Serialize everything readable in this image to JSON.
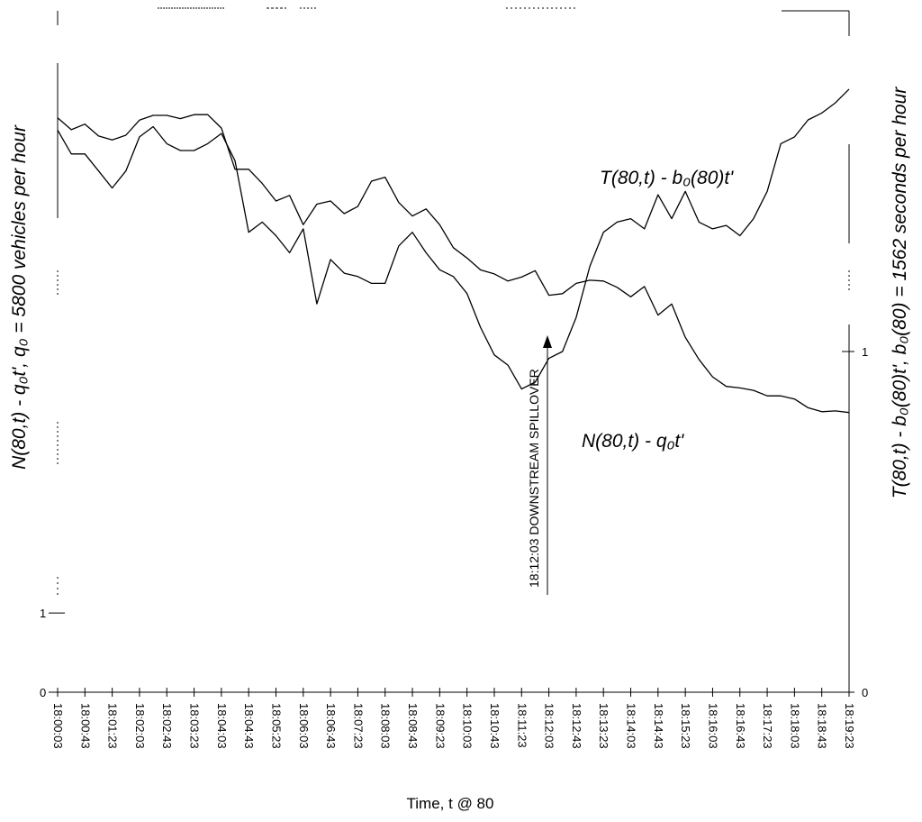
{
  "chart_data": {
    "type": "line",
    "xlabel": "Time, t @ 80",
    "ylabel_left": "N(80,t) - q₀t', q₀ = 5800 vehicles per hour",
    "ylabel_right": "T(80,t) - b₀(80)t', b₀(80) = 1562 seconds per hour",
    "x_tick_labels": [
      "18:00:03",
      "18:00:43",
      "18:01:23",
      "18:02:03",
      "18:02:43",
      "18:03:23",
      "18:04:03",
      "18:04:43",
      "18:05:23",
      "18:06:03",
      "18:06:43",
      "18:07:23",
      "18:08:03",
      "18:08:43",
      "18:09:23",
      "18:10:03",
      "18:10:43",
      "18:11:23",
      "18:12:03",
      "18:12:43",
      "18:13:23",
      "18:14:03",
      "18:14:43",
      "18:15:23",
      "18:16:03",
      "18:16:43",
      "18:17:23",
      "18:18:03",
      "18:18:43",
      "18:19:23"
    ],
    "x_range": [
      0,
      1160
    ],
    "y_left_ticks": [
      {
        "value": 0,
        "label": "0"
      },
      {
        "value": 1,
        "label": "1"
      }
    ],
    "y_left_range": [
      0,
      8.6
    ],
    "y_right_ticks": [
      {
        "value": 0,
        "label": "0"
      },
      {
        "value": 1,
        "label": "1"
      }
    ],
    "y_right_range": [
      0,
      2.0
    ],
    "series": [
      {
        "name": "N(80,t) - q₀t'",
        "axis": "left",
        "x": [
          0,
          20,
          40,
          60,
          80,
          100,
          120,
          140,
          160,
          180,
          200,
          220,
          240,
          260,
          280,
          300,
          320,
          340,
          360,
          380,
          400,
          420,
          440,
          460,
          480,
          500,
          520,
          540,
          560,
          580,
          600,
          620,
          640,
          660,
          680,
          700,
          720,
          740,
          760,
          780,
          800,
          820,
          840,
          860,
          880,
          900,
          920,
          940,
          960,
          980,
          1000,
          1020,
          1040,
          1060,
          1080,
          1100,
          1120,
          1140,
          1160
        ],
        "y": [
          7.25,
          7.1,
          7.17,
          7.02,
          6.97,
          7.03,
          7.22,
          7.28,
          7.28,
          7.24,
          7.29,
          7.29,
          7.12,
          6.6,
          6.6,
          6.42,
          6.2,
          6.27,
          5.9,
          6.16,
          6.2,
          6.04,
          6.13,
          6.45,
          6.5,
          6.18,
          6.01,
          6.1,
          5.9,
          5.61,
          5.48,
          5.33,
          5.28,
          5.19,
          5.24,
          5.32,
          5.01,
          5.03,
          5.16,
          5.2,
          5.19,
          5.11,
          4.99,
          5.12,
          4.76,
          4.9,
          4.48,
          4.2,
          3.98,
          3.86,
          3.84,
          3.81,
          3.74,
          3.74,
          3.7,
          3.59,
          3.54,
          3.55,
          3.53
        ]
      },
      {
        "name": "T(80,t) - b₀(80)t'",
        "axis": "right",
        "x": [
          0,
          20,
          40,
          60,
          80,
          100,
          120,
          140,
          160,
          180,
          200,
          220,
          240,
          260,
          280,
          300,
          320,
          340,
          360,
          380,
          400,
          420,
          440,
          460,
          480,
          500,
          520,
          540,
          560,
          580,
          600,
          620,
          640,
          660,
          680,
          700,
          720,
          740,
          760,
          780,
          800,
          820,
          840,
          860,
          880,
          900,
          920,
          940,
          960,
          980,
          1000,
          1020,
          1040,
          1060,
          1080,
          1100,
          1120,
          1140,
          1160
        ],
        "y": [
          1.65,
          1.58,
          1.58,
          1.53,
          1.48,
          1.53,
          1.63,
          1.66,
          1.61,
          1.59,
          1.59,
          1.61,
          1.64,
          1.56,
          1.35,
          1.38,
          1.34,
          1.29,
          1.36,
          1.14,
          1.27,
          1.23,
          1.22,
          1.2,
          1.2,
          1.31,
          1.35,
          1.29,
          1.24,
          1.22,
          1.17,
          1.07,
          0.99,
          0.96,
          0.89,
          0.91,
          0.98,
          1.0,
          1.1,
          1.25,
          1.35,
          1.38,
          1.39,
          1.36,
          1.46,
          1.39,
          1.47,
          1.38,
          1.36,
          1.37,
          1.34,
          1.39,
          1.47,
          1.61,
          1.63,
          1.68,
          1.7,
          1.73,
          1.77
        ]
      }
    ],
    "annotations": [
      {
        "text": "T(80,t) - b₀(80)t'",
        "series": 1
      },
      {
        "text": "N(80,t) - q₀t'",
        "series": 0
      },
      {
        "text": "18:12:03 DOWNSTREAM SPILLOVER",
        "x": 720
      }
    ],
    "grid": false,
    "legend": "none"
  }
}
